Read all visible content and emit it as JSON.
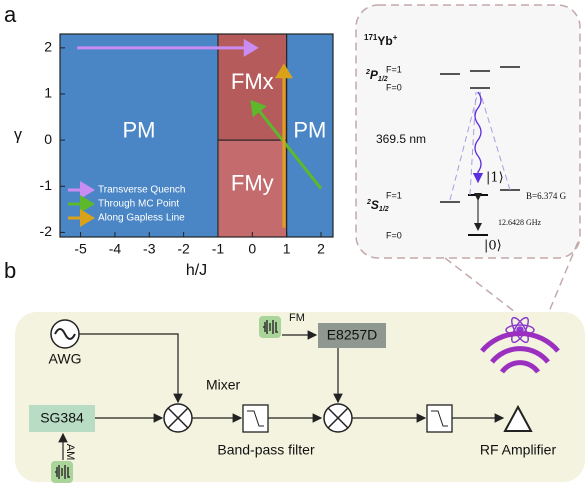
{
  "panel_labels": [
    "a",
    "b"
  ],
  "chart_data": {
    "type": "region",
    "x_label": "h/J",
    "y_label": "γ",
    "xlim": [
      -5.6,
      2.35
    ],
    "ylim": [
      -2.1,
      2.3
    ],
    "xticks": [
      -5,
      -4,
      -3,
      -2,
      -1,
      0,
      1,
      2
    ],
    "yticks": [
      -2,
      -1,
      0,
      1,
      2
    ],
    "regions": [
      {
        "label": "PM",
        "color": "#4a86c5",
        "x": [
          -5.6,
          -1
        ],
        "y": [
          -2.1,
          2.3
        ]
      },
      {
        "label": "FMx",
        "color": "#b65b5c",
        "x": [
          -1,
          1
        ],
        "y": [
          0,
          2.3
        ]
      },
      {
        "label": "FMy",
        "color": "#c46c6d",
        "x": [
          -1,
          1
        ],
        "y": [
          -2.1,
          0
        ]
      },
      {
        "label": "PM",
        "color": "#4a86c5",
        "x": [
          1,
          2.35
        ],
        "y": [
          -2.1,
          2.3
        ]
      }
    ],
    "series": [
      {
        "name": "Transverse Quench",
        "color": "#c98cf2",
        "x": [
          -5.1,
          0.1
        ],
        "values": [
          2,
          2
        ]
      },
      {
        "name": "Through MC Point",
        "color": "#5db82c",
        "x": [
          2.0,
          0.0
        ],
        "values": [
          -1.05,
          0.82
        ]
      },
      {
        "name": "Along Gapless Line",
        "color": "#d9a21a",
        "x": [
          0.92,
          0.92
        ],
        "values": [
          -1.9,
          1.6
        ]
      }
    ]
  },
  "inset": {
    "ion": {
      "mass": "171",
      "symbol": "Yb",
      "charge": "+"
    },
    "upper": {
      "term": [
        "2",
        "P",
        "1/2"
      ],
      "f_high": "F=1",
      "f_low": "F=0"
    },
    "lower": {
      "term": [
        "2",
        "S",
        "1/2"
      ],
      "f_high": "F=1",
      "f_low": "F=0"
    },
    "wavelength": "369.5 nm",
    "state1": "|1⟩",
    "state0": "|0⟩",
    "field": "B=6.374 G",
    "splitting": "12.6428 GHz"
  },
  "panel_b": {
    "awg": "AWG",
    "sg384": "SG384",
    "e8257d": "E8257D",
    "mixer": "Mixer",
    "filter": "Band-pass filter",
    "amplifier": "RF Amplifier",
    "fm": "FM",
    "am": "AM"
  }
}
